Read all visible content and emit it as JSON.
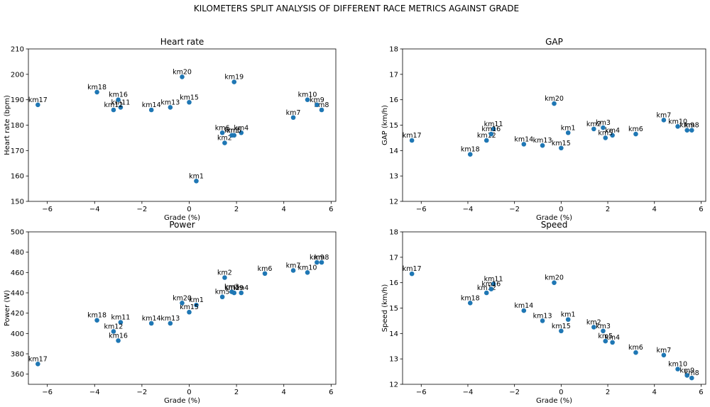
{
  "figure": {
    "suptitle": "KILOMETERS SPLIT ANALYSIS OF DIFFERENT RACE METRICS AGAINST GRADE"
  },
  "chart_data": [
    {
      "type": "scatter",
      "title": "Heart rate",
      "xlabel": "Grade (%)",
      "ylabel": "Heart rate (bpm)",
      "xlim": [
        -6.8,
        6.2
      ],
      "ylim": [
        150,
        210
      ],
      "xticks": [
        -6,
        -4,
        -2,
        0,
        2,
        4,
        6
      ],
      "yticks": [
        150,
        160,
        170,
        180,
        190,
        200,
        210
      ],
      "marker_color": "#1f77b4",
      "points": [
        {
          "label": "km1",
          "x": 0.3,
          "y": 158
        },
        {
          "label": "km2",
          "x": 1.5,
          "y": 173
        },
        {
          "label": "km3",
          "x": 1.8,
          "y": 176
        },
        {
          "label": "km4",
          "x": 2.2,
          "y": 177
        },
        {
          "label": "km5",
          "x": 1.9,
          "y": 176
        },
        {
          "label": "km6",
          "x": 1.4,
          "y": 177
        },
        {
          "label": "km7",
          "x": 4.4,
          "y": 183
        },
        {
          "label": "km8",
          "x": 5.6,
          "y": 186
        },
        {
          "label": "km9",
          "x": 5.4,
          "y": 188
        },
        {
          "label": "km10",
          "x": 5.0,
          "y": 190
        },
        {
          "label": "km11",
          "x": -2.9,
          "y": 187
        },
        {
          "label": "km12",
          "x": -3.2,
          "y": 186
        },
        {
          "label": "km13",
          "x": -0.8,
          "y": 187
        },
        {
          "label": "km14",
          "x": -1.6,
          "y": 186
        },
        {
          "label": "km15",
          "x": 0.0,
          "y": 189
        },
        {
          "label": "km16",
          "x": -3.0,
          "y": 190
        },
        {
          "label": "km17",
          "x": -6.4,
          "y": 188
        },
        {
          "label": "km18",
          "x": -3.9,
          "y": 193
        },
        {
          "label": "km19",
          "x": 1.9,
          "y": 197
        },
        {
          "label": "km20",
          "x": -0.3,
          "y": 199
        }
      ]
    },
    {
      "type": "scatter",
      "title": "GAP",
      "xlabel": "Grade (%)",
      "ylabel": "GAP (km/h)",
      "xlim": [
        -6.8,
        6.2
      ],
      "ylim": [
        12,
        18
      ],
      "xticks": [
        -6,
        -4,
        -2,
        0,
        2,
        4,
        6
      ],
      "yticks": [
        12,
        13,
        14,
        15,
        16,
        17,
        18
      ],
      "marker_color": "#1f77b4",
      "points": [
        {
          "label": "km1",
          "x": 0.3,
          "y": 14.7
        },
        {
          "label": "km2",
          "x": 1.4,
          "y": 14.85
        },
        {
          "label": "km3",
          "x": 1.8,
          "y": 14.9
        },
        {
          "label": "km4",
          "x": 2.2,
          "y": 14.6
        },
        {
          "label": "km5",
          "x": 1.9,
          "y": 14.5
        },
        {
          "label": "km6",
          "x": 3.2,
          "y": 14.65
        },
        {
          "label": "km7",
          "x": 4.4,
          "y": 15.2
        },
        {
          "label": "km8",
          "x": 5.6,
          "y": 14.8
        },
        {
          "label": "km9",
          "x": 5.4,
          "y": 14.8
        },
        {
          "label": "km10",
          "x": 5.0,
          "y": 14.95
        },
        {
          "label": "km11",
          "x": -2.9,
          "y": 14.85
        },
        {
          "label": "km12",
          "x": -3.2,
          "y": 14.4
        },
        {
          "label": "km13",
          "x": -0.8,
          "y": 14.2
        },
        {
          "label": "km14",
          "x": -1.6,
          "y": 14.25
        },
        {
          "label": "km15",
          "x": 0.0,
          "y": 14.1
        },
        {
          "label": "km16",
          "x": -3.0,
          "y": 14.65
        },
        {
          "label": "km17",
          "x": -6.4,
          "y": 14.4
        },
        {
          "label": "km18",
          "x": -3.9,
          "y": 13.85
        },
        {
          "label": "km20",
          "x": -0.3,
          "y": 15.85
        }
      ]
    },
    {
      "type": "scatter",
      "title": "Power",
      "xlabel": "Grade (%)",
      "ylabel": "Power (W)",
      "xlim": [
        -6.8,
        6.2
      ],
      "ylim": [
        350,
        500
      ],
      "xticks": [
        -6,
        -4,
        -2,
        0,
        2,
        4,
        6
      ],
      "yticks": [
        360,
        380,
        400,
        420,
        440,
        460,
        480,
        500
      ],
      "marker_color": "#1f77b4",
      "points": [
        {
          "label": "km1",
          "x": 0.3,
          "y": 428
        },
        {
          "label": "km2",
          "x": 1.5,
          "y": 455
        },
        {
          "label": "km3",
          "x": 1.8,
          "y": 441
        },
        {
          "label": "km4",
          "x": 2.2,
          "y": 440
        },
        {
          "label": "km5",
          "x": 1.4,
          "y": 436
        },
        {
          "label": "km6",
          "x": 3.2,
          "y": 459
        },
        {
          "label": "km7",
          "x": 4.4,
          "y": 462
        },
        {
          "label": "km8",
          "x": 5.6,
          "y": 470
        },
        {
          "label": "km9",
          "x": 5.4,
          "y": 470
        },
        {
          "label": "km10",
          "x": 5.0,
          "y": 460
        },
        {
          "label": "km11",
          "x": -2.9,
          "y": 411
        },
        {
          "label": "km12",
          "x": -3.2,
          "y": 402
        },
        {
          "label": "km13",
          "x": -0.8,
          "y": 410
        },
        {
          "label": "km14",
          "x": -1.6,
          "y": 410
        },
        {
          "label": "km15",
          "x": 0.0,
          "y": 421
        },
        {
          "label": "km16",
          "x": -3.0,
          "y": 393
        },
        {
          "label": "km17",
          "x": -6.4,
          "y": 370
        },
        {
          "label": "km18",
          "x": -3.9,
          "y": 413
        },
        {
          "label": "km19",
          "x": 1.9,
          "y": 440
        },
        {
          "label": "km20",
          "x": -0.3,
          "y": 430
        }
      ]
    },
    {
      "type": "scatter",
      "title": "Speed",
      "xlabel": "Grade (%)",
      "ylabel": "Speed (km/h)",
      "xlim": [
        -6.8,
        6.2
      ],
      "ylim": [
        12,
        18
      ],
      "xticks": [
        -6,
        -4,
        -2,
        0,
        2,
        4,
        6
      ],
      "yticks": [
        12,
        13,
        14,
        15,
        16,
        17,
        18
      ],
      "marker_color": "#1f77b4",
      "points": [
        {
          "label": "km1",
          "x": 0.3,
          "y": 14.55
        },
        {
          "label": "km2",
          "x": 1.4,
          "y": 14.25
        },
        {
          "label": "km3",
          "x": 1.8,
          "y": 14.1
        },
        {
          "label": "km4",
          "x": 2.2,
          "y": 13.65
        },
        {
          "label": "km5",
          "x": 1.9,
          "y": 13.7
        },
        {
          "label": "km6",
          "x": 3.2,
          "y": 13.25
        },
        {
          "label": "km7",
          "x": 4.4,
          "y": 13.15
        },
        {
          "label": "km8",
          "x": 5.6,
          "y": 12.25
        },
        {
          "label": "km9",
          "x": 5.4,
          "y": 12.35
        },
        {
          "label": "km10",
          "x": 5.0,
          "y": 12.6
        },
        {
          "label": "km11",
          "x": -2.9,
          "y": 15.95
        },
        {
          "label": "km12",
          "x": -3.2,
          "y": 15.6
        },
        {
          "label": "km13",
          "x": -0.8,
          "y": 14.5
        },
        {
          "label": "km14",
          "x": -1.6,
          "y": 14.9
        },
        {
          "label": "km15",
          "x": 0.0,
          "y": 14.1
        },
        {
          "label": "km16",
          "x": -3.0,
          "y": 15.75
        },
        {
          "label": "km17",
          "x": -6.4,
          "y": 16.35
        },
        {
          "label": "km18",
          "x": -3.9,
          "y": 15.2
        },
        {
          "label": "km20",
          "x": -0.3,
          "y": 16.0
        }
      ]
    }
  ]
}
